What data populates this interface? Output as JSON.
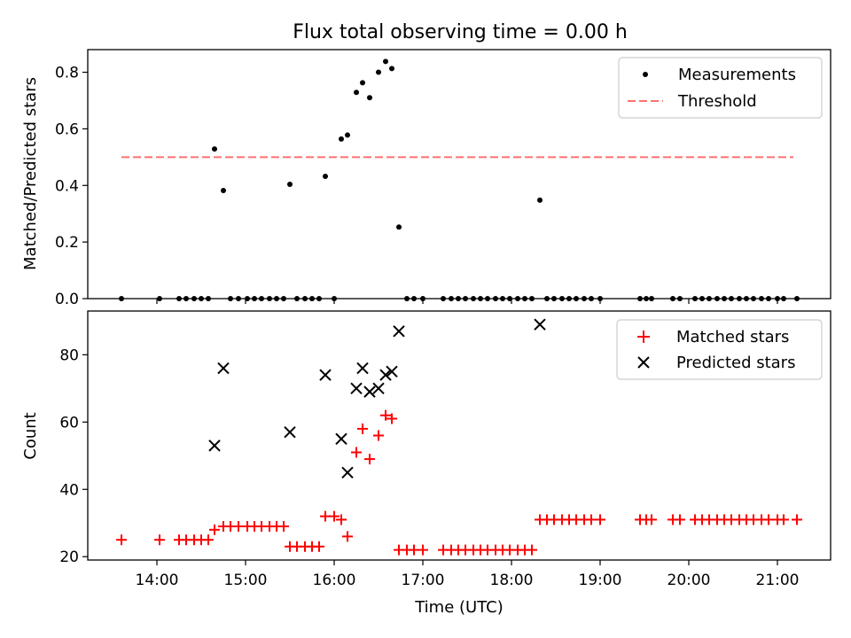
{
  "figure": {
    "title": "Flux total observing time = 0.00 h"
  },
  "chart_data": [
    {
      "type": "scatter",
      "title": "Flux total observing time = 0.00 h",
      "xlabel": "",
      "ylabel": "Matched/Predicted stars",
      "xlim": [
        13.22,
        21.6
      ],
      "ylim": [
        0.0,
        0.88
      ],
      "yticks": [
        0.0,
        0.2,
        0.4,
        0.6,
        0.8
      ],
      "ytick_labels": [
        "0.0",
        "0.2",
        "0.4",
        "0.6",
        "0.8"
      ],
      "grid": false,
      "legend": {
        "placement": "upper-right",
        "entries": [
          "Measurements",
          "Threshold"
        ]
      },
      "series": [
        {
          "name": "Measurements",
          "color": "#000000",
          "marker": "dot",
          "points": [
            [
              13.6,
              0
            ],
            [
              14.03,
              0
            ],
            [
              14.25,
              0
            ],
            [
              14.33,
              0
            ],
            [
              14.42,
              0
            ],
            [
              14.5,
              0
            ],
            [
              14.58,
              0
            ],
            [
              14.65,
              0.529
            ],
            [
              14.75,
              0.382
            ],
            [
              14.83,
              0
            ],
            [
              14.92,
              0
            ],
            [
              15.02,
              0
            ],
            [
              15.1,
              0
            ],
            [
              15.18,
              0
            ],
            [
              15.27,
              0
            ],
            [
              15.35,
              0
            ],
            [
              15.43,
              0
            ],
            [
              15.5,
              0.404
            ],
            [
              15.58,
              0
            ],
            [
              15.67,
              0
            ],
            [
              15.75,
              0
            ],
            [
              15.83,
              0
            ],
            [
              15.9,
              0.432
            ],
            [
              16.0,
              0
            ],
            [
              16.08,
              0.564
            ],
            [
              16.15,
              0.578
            ],
            [
              16.25,
              0.729
            ],
            [
              16.32,
              0.763
            ],
            [
              16.4,
              0.71
            ],
            [
              16.5,
              0.8
            ],
            [
              16.58,
              0.838
            ],
            [
              16.65,
              0.813
            ],
            [
              16.73,
              0.253
            ],
            [
              16.82,
              0
            ],
            [
              16.9,
              0
            ],
            [
              17.0,
              0
            ],
            [
              17.23,
              0
            ],
            [
              17.32,
              0
            ],
            [
              17.4,
              0
            ],
            [
              17.48,
              0
            ],
            [
              17.57,
              0
            ],
            [
              17.65,
              0
            ],
            [
              17.73,
              0
            ],
            [
              17.82,
              0
            ],
            [
              17.9,
              0
            ],
            [
              17.98,
              0
            ],
            [
              18.07,
              0
            ],
            [
              18.15,
              0
            ],
            [
              18.23,
              0
            ],
            [
              18.32,
              0.348
            ],
            [
              18.4,
              0
            ],
            [
              18.48,
              0
            ],
            [
              18.57,
              0
            ],
            [
              18.65,
              0
            ],
            [
              18.73,
              0
            ],
            [
              18.82,
              0
            ],
            [
              18.9,
              0
            ],
            [
              19.0,
              0
            ],
            [
              19.45,
              0
            ],
            [
              19.52,
              0
            ],
            [
              19.58,
              0
            ],
            [
              19.82,
              0
            ],
            [
              19.9,
              0
            ],
            [
              20.07,
              0
            ],
            [
              20.15,
              0
            ],
            [
              20.23,
              0
            ],
            [
              20.32,
              0
            ],
            [
              20.4,
              0
            ],
            [
              20.48,
              0
            ],
            [
              20.57,
              0
            ],
            [
              20.65,
              0
            ],
            [
              20.73,
              0
            ],
            [
              20.82,
              0
            ],
            [
              20.9,
              0
            ],
            [
              21.0,
              0
            ],
            [
              21.07,
              0
            ],
            [
              21.22,
              0
            ]
          ]
        },
        {
          "name": "Threshold",
          "color": "#ff7070",
          "style": "dashed",
          "points": [
            [
              13.6,
              0.5
            ],
            [
              21.18,
              0.5
            ]
          ]
        }
      ]
    },
    {
      "type": "scatter",
      "title": "",
      "xlabel": "Time (UTC)",
      "ylabel": "Count",
      "xlim": [
        13.22,
        21.6
      ],
      "ylim": [
        19,
        93
      ],
      "yticks": [
        20,
        40,
        60,
        80
      ],
      "ytick_labels": [
        "20",
        "40",
        "60",
        "80"
      ],
      "xticks": [
        14,
        15,
        16,
        17,
        18,
        19,
        20,
        21
      ],
      "xtick_labels": [
        "14:00",
        "15:00",
        "16:00",
        "17:00",
        "18:00",
        "19:00",
        "20:00",
        "21:00"
      ],
      "grid": false,
      "legend": {
        "placement": "upper-right",
        "entries": [
          "Matched stars",
          "Predicted stars"
        ]
      },
      "series": [
        {
          "name": "Matched stars",
          "color": "#ff0000",
          "marker": "plus",
          "points": [
            [
              13.6,
              25
            ],
            [
              14.03,
              25
            ],
            [
              14.25,
              25
            ],
            [
              14.33,
              25
            ],
            [
              14.42,
              25
            ],
            [
              14.5,
              25
            ],
            [
              14.58,
              25
            ],
            [
              14.65,
              28
            ],
            [
              14.75,
              29
            ],
            [
              14.83,
              29
            ],
            [
              14.92,
              29
            ],
            [
              15.02,
              29
            ],
            [
              15.1,
              29
            ],
            [
              15.18,
              29
            ],
            [
              15.27,
              29
            ],
            [
              15.35,
              29
            ],
            [
              15.43,
              29
            ],
            [
              15.5,
              23
            ],
            [
              15.58,
              23
            ],
            [
              15.67,
              23
            ],
            [
              15.75,
              23
            ],
            [
              15.83,
              23
            ],
            [
              15.9,
              32
            ],
            [
              16.0,
              32
            ],
            [
              16.08,
              31
            ],
            [
              16.15,
              26
            ],
            [
              16.25,
              51
            ],
            [
              16.32,
              58
            ],
            [
              16.4,
              49
            ],
            [
              16.5,
              56
            ],
            [
              16.58,
              62
            ],
            [
              16.65,
              61
            ],
            [
              16.73,
              22
            ],
            [
              16.82,
              22
            ],
            [
              16.9,
              22
            ],
            [
              17.0,
              22
            ],
            [
              17.23,
              22
            ],
            [
              17.32,
              22
            ],
            [
              17.4,
              22
            ],
            [
              17.48,
              22
            ],
            [
              17.57,
              22
            ],
            [
              17.65,
              22
            ],
            [
              17.73,
              22
            ],
            [
              17.82,
              22
            ],
            [
              17.9,
              22
            ],
            [
              17.98,
              22
            ],
            [
              18.07,
              22
            ],
            [
              18.15,
              22
            ],
            [
              18.23,
              22
            ],
            [
              18.32,
              31
            ],
            [
              18.4,
              31
            ],
            [
              18.48,
              31
            ],
            [
              18.57,
              31
            ],
            [
              18.65,
              31
            ],
            [
              18.73,
              31
            ],
            [
              18.82,
              31
            ],
            [
              18.9,
              31
            ],
            [
              19.0,
              31
            ],
            [
              19.45,
              31
            ],
            [
              19.52,
              31
            ],
            [
              19.58,
              31
            ],
            [
              19.82,
              31
            ],
            [
              19.9,
              31
            ],
            [
              20.07,
              31
            ],
            [
              20.15,
              31
            ],
            [
              20.23,
              31
            ],
            [
              20.32,
              31
            ],
            [
              20.4,
              31
            ],
            [
              20.48,
              31
            ],
            [
              20.57,
              31
            ],
            [
              20.65,
              31
            ],
            [
              20.73,
              31
            ],
            [
              20.82,
              31
            ],
            [
              20.9,
              31
            ],
            [
              21.0,
              31
            ],
            [
              21.07,
              31
            ],
            [
              21.22,
              31
            ]
          ]
        },
        {
          "name": "Predicted stars",
          "color": "#000000",
          "marker": "x",
          "points": [
            [
              14.65,
              53
            ],
            [
              14.75,
              76
            ],
            [
              15.5,
              57
            ],
            [
              15.9,
              74
            ],
            [
              16.08,
              55
            ],
            [
              16.15,
              45
            ],
            [
              16.25,
              70
            ],
            [
              16.32,
              76
            ],
            [
              16.4,
              69
            ],
            [
              16.5,
              70
            ],
            [
              16.58,
              74
            ],
            [
              16.65,
              75
            ],
            [
              16.73,
              87
            ],
            [
              18.32,
              89
            ]
          ]
        }
      ]
    }
  ]
}
